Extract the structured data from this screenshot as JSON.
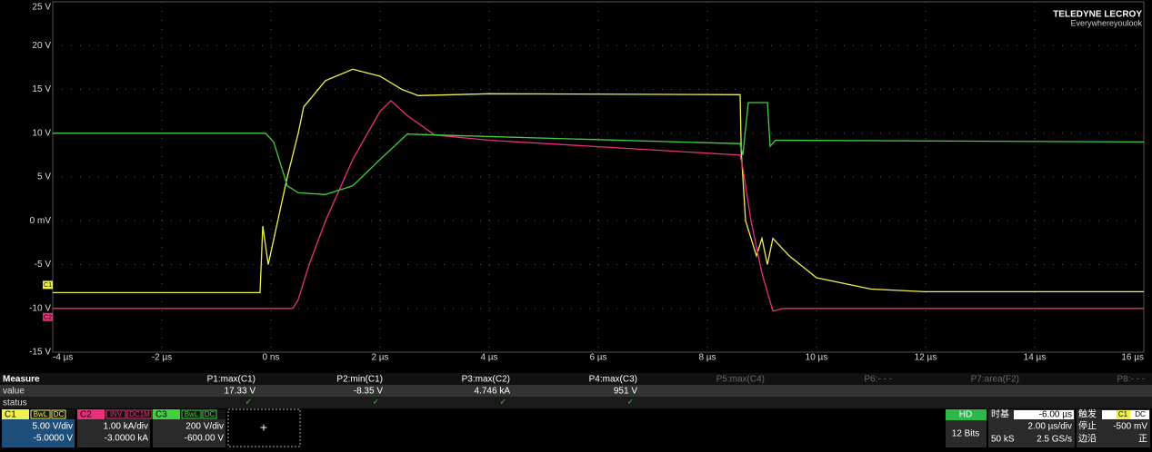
{
  "chart_data": {
    "type": "line",
    "xlim": [
      -4,
      16
    ],
    "ylim": [
      -15,
      25
    ],
    "xticks": [
      {
        "value": -4,
        "label": "-4 µs"
      },
      {
        "value": -2,
        "label": "-2 µs"
      },
      {
        "value": 0,
        "label": "0 ns"
      },
      {
        "value": 2,
        "label": "2 µs"
      },
      {
        "value": 4,
        "label": "4 µs"
      },
      {
        "value": 6,
        "label": "6 µs"
      },
      {
        "value": 8,
        "label": "8 µs"
      },
      {
        "value": 10,
        "label": "10 µs"
      },
      {
        "value": 12,
        "label": "12 µs"
      },
      {
        "value": 14,
        "label": "14 µs"
      },
      {
        "value": 16,
        "label": "16 µs"
      }
    ],
    "yticks": [
      {
        "value": -15,
        "label": "-15 V"
      },
      {
        "value": -10,
        "label": "-10 V"
      },
      {
        "value": -5,
        "label": "-5 V"
      },
      {
        "value": 0,
        "label": "0 mV"
      },
      {
        "value": 5,
        "label": "5 V"
      },
      {
        "value": 10,
        "label": "10 V"
      },
      {
        "value": 15,
        "label": "15 V"
      },
      {
        "value": 20,
        "label": "20 V"
      },
      {
        "value": 25,
        "label": "25 V"
      }
    ],
    "grid": true,
    "series": [
      {
        "name": "C1",
        "color": "#f0f050",
        "x": [
          -4,
          -0.2,
          -0.15,
          -0.05,
          0.3,
          0.5,
          0.6,
          1.0,
          1.5,
          2.0,
          2.4,
          2.7,
          4,
          8.6,
          8.62,
          8.7,
          8.9,
          9.0,
          9.1,
          9.2,
          9.5,
          10,
          11,
          12,
          16
        ],
        "values": [
          -8.2,
          -8.2,
          -0.6,
          -5,
          5,
          10,
          13,
          16,
          17.3,
          16.5,
          15,
          14.3,
          14.5,
          14.4,
          8,
          0,
          -4,
          -2,
          -5,
          -2,
          -4,
          -6.5,
          -7.8,
          -8.1,
          -8.1
        ]
      },
      {
        "name": "C2",
        "color": "#e8307a",
        "x": [
          -4,
          0.4,
          0.5,
          0.7,
          1.0,
          1.5,
          2.0,
          2.2,
          2.5,
          3.0,
          4,
          8.6,
          8.65,
          8.8,
          9.0,
          9.2,
          9.4,
          16
        ],
        "values": [
          -10,
          -10,
          -9,
          -5,
          0,
          7,
          12.5,
          13.7,
          12,
          9.8,
          9.2,
          7.5,
          6,
          0,
          -6,
          -10.3,
          -10,
          -10
        ]
      },
      {
        "name": "C3",
        "color": "#40d040",
        "x": [
          -4,
          -0.1,
          0.05,
          0.3,
          0.5,
          1.0,
          1.5,
          2.0,
          2.5,
          3,
          8.6,
          8.65,
          8.75,
          9.1,
          9.15,
          9.25,
          16
        ],
        "values": [
          10,
          10,
          9,
          4,
          3.2,
          3,
          4,
          7,
          9.9,
          9.8,
          8.8,
          7.5,
          13.5,
          13.5,
          8.5,
          9.2,
          9.0
        ]
      }
    ]
  },
  "logo": {
    "brand": "TELEDYNE LECROY",
    "slogan": "Everywhereyoulook"
  },
  "measure": {
    "title": "Measure",
    "row_labels": [
      "value",
      "status"
    ],
    "columns": [
      "P1:max(C1)",
      "P2:min(C1)",
      "P3:max(C2)",
      "P4:max(C3)",
      "P5:max(C4)",
      "P6:- - -",
      "P7:area(F2)",
      "P8:- - -"
    ],
    "values": [
      "17.33 V",
      "-8.35 V",
      "4.746 kA",
      "951 V"
    ],
    "status_mark": "✓"
  },
  "channels": [
    {
      "name": "C1",
      "tags": [
        "BwL",
        "DC"
      ],
      "scale": "5.00 V/div",
      "offset": "-5.0000 V"
    },
    {
      "name": "C2",
      "tags": [
        "INV",
        "DC1M"
      ],
      "scale": "1.00 kA/div",
      "offset": "-3.0000 kA"
    },
    {
      "name": "C3",
      "tags": [
        "BwL",
        "DC"
      ],
      "scale": "200 V/div",
      "offset": "-600.00 V"
    }
  ],
  "add_button": "+",
  "acquisition": {
    "mode": "HD",
    "bits": "12 Bits"
  },
  "timebase": {
    "label": "时基",
    "delay": "-6.00 µs",
    "scale": "2.00 µs/div",
    "samples": "50 kS",
    "rate": "2.5 GS/s"
  },
  "trigger": {
    "label": "触发",
    "source": "C1",
    "coupling": "DC",
    "state": "停止",
    "level": "-500 mV",
    "type": "边沿",
    "slope": "正"
  }
}
